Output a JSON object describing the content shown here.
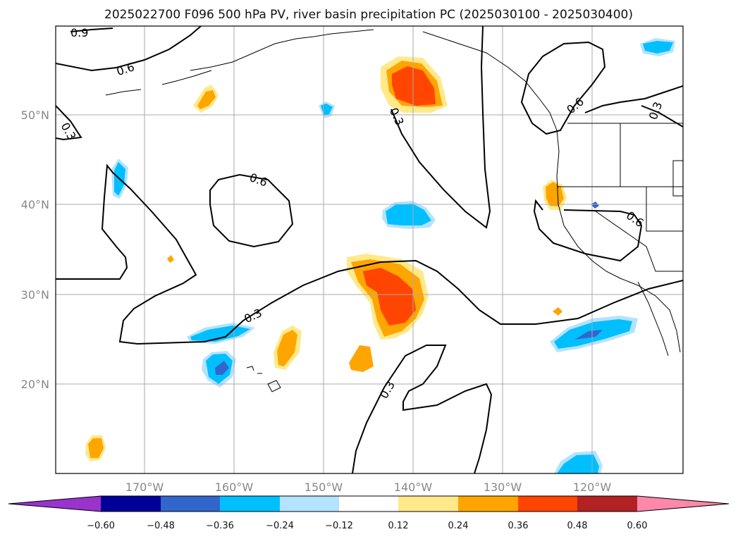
{
  "title": "2025022700 F096 500 hPa PV, river basin precipitation PC (2025030100 - 2025030400)",
  "lat_ticks": [
    "50°N",
    "40°N",
    "30°N",
    "20°N"
  ],
  "lon_ticks": [
    "170°W",
    "160°W",
    "150°W",
    "140°W",
    "130°W",
    "120°W"
  ],
  "contour_labels": [
    "0.9",
    "0.6",
    "0.3",
    "0.3",
    "0.6",
    "0.6",
    "0.3",
    "0.6",
    "0.3",
    "0.3"
  ],
  "colorbar": {
    "tick_labels": [
      "−0.60",
      "−0.48",
      "−0.36",
      "−0.24",
      "−0.12",
      "0.12",
      "0.24",
      "0.36",
      "0.48",
      "0.60"
    ],
    "colors": [
      "#9933cc",
      "#000099",
      "#3366cc",
      "#00bfff",
      "#b3e3ff",
      "#ffffff",
      "#ffe98a",
      "#ffa500",
      "#ff4500",
      "#b22222",
      "#ff88aa"
    ]
  },
  "colors": {
    "pos_low": "#ffe98a",
    "pos_mid": "#ffa500",
    "pos_high": "#ff4500",
    "neg_low": "#b3e3ff",
    "neg_mid": "#00bfff",
    "neg_high": "#3366cc",
    "contour": "#000000",
    "grid": "#aaaaaa"
  }
}
